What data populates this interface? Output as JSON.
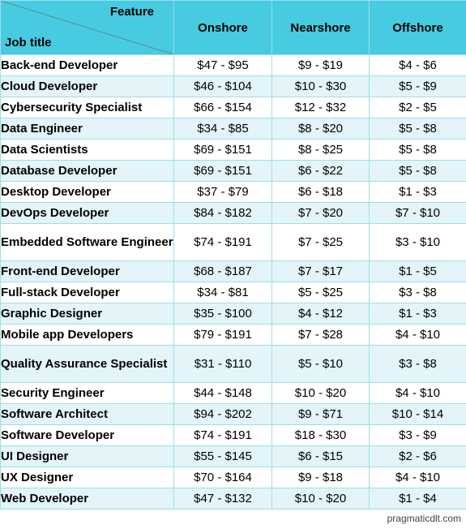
{
  "header": {
    "feature_label": "Feature",
    "job_title_label": "Job title",
    "columns": [
      "Onshore",
      "Nearshore",
      "Offshore"
    ]
  },
  "rows": [
    {
      "title": "Back-end Developer",
      "onshore": "$47 - $95",
      "nearshore": "$9 - $19",
      "offshore": "$4 - $6"
    },
    {
      "title": "Cloud Developer",
      "onshore": "$46 - $104",
      "nearshore": "$10 - $30",
      "offshore": "$5 - $9"
    },
    {
      "title": "Cybersecurity Specialist",
      "onshore": "$66 - $154",
      "nearshore": "$12 - $32",
      "offshore": "$2 - $5"
    },
    {
      "title": "Data Engineer",
      "onshore": "$34 - $85",
      "nearshore": "$8 - $20",
      "offshore": "$5 - $8"
    },
    {
      "title": "Data Scientists",
      "onshore": "$69 - $151",
      "nearshore": "$8 - $25",
      "offshore": "$5 - $8"
    },
    {
      "title": "Database Developer",
      "onshore": "$69 - $151",
      "nearshore": "$6 - $22",
      "offshore": "$5 - $8"
    },
    {
      "title": "Desktop Developer",
      "onshore": "$37 - $79",
      "nearshore": "$6 - $18",
      "offshore": "$1 - $3"
    },
    {
      "title": "DevOps Developer",
      "onshore": "$84 - $182",
      "nearshore": "$7 - $20",
      "offshore": "$7 - $10"
    },
    {
      "title": "Embedded Software Engineer",
      "onshore": "$74 - $191",
      "nearshore": "$7 - $25",
      "offshore": "$3 - $10"
    },
    {
      "title": "Front-end Developer",
      "onshore": "$68 - $187",
      "nearshore": "$7 - $17",
      "offshore": "$1 - $5"
    },
    {
      "title": "Full-stack Developer",
      "onshore": "$34 - $81",
      "nearshore": "$5 - $25",
      "offshore": "$3 - $8"
    },
    {
      "title": "Graphic Designer",
      "onshore": "$35 - $100",
      "nearshore": "$4 - $12",
      "offshore": "$1 - $3"
    },
    {
      "title": "Mobile app Developers",
      "onshore": "$79 - $191",
      "nearshore": "$7 - $28",
      "offshore": "$4 - $10"
    },
    {
      "title": "Quality Assurance Specialist",
      "onshore": "$31 - $110",
      "nearshore": "$5 - $10",
      "offshore": "$3 - $8"
    },
    {
      "title": "Security Engineer",
      "onshore": "$44 - $148",
      "nearshore": "$10 - $20",
      "offshore": "$4 - $10"
    },
    {
      "title": "Software Architect",
      "onshore": "$94 - $202",
      "nearshore": "$9 - $71",
      "offshore": "$10 - $14"
    },
    {
      "title": "Software Developer",
      "onshore": "$74 - $191",
      "nearshore": "$18 - $30",
      "offshore": "$3 - $9"
    },
    {
      "title": "UI Designer",
      "onshore": "$55 - $145",
      "nearshore": "$6 - $15",
      "offshore": "$2 - $6"
    },
    {
      "title": "UX Designer",
      "onshore": "$70 - $164",
      "nearshore": "$9 - $18",
      "offshore": "$4 - $10"
    },
    {
      "title": "Web Developer",
      "onshore": "$47 - $132",
      "nearshore": "$10 - $20",
      "offshore": "$1 - $4"
    }
  ],
  "footer": {
    "credit": "pragmaticdlt.com"
  },
  "colors": {
    "header_bg": "#47cbe0",
    "stripe_bg": "#e3f5f9",
    "border": "#9fdde8"
  }
}
